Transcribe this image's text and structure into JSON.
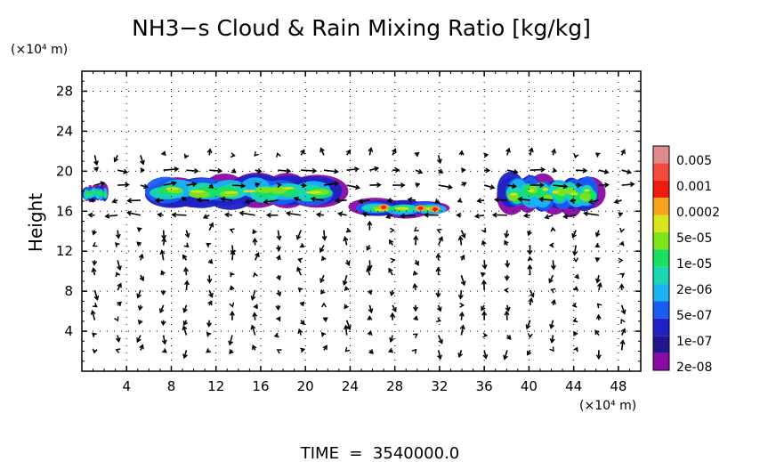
{
  "chart_data": {
    "type": "heatmap",
    "title": "NH3−s Cloud & Rain Mixing Ratio [kg/kg]",
    "xlabel": "",
    "ylabel": "Height",
    "x_unit": "(×10⁴ m)",
    "y_unit": "(×10⁴ m)",
    "xlim": [
      0,
      50
    ],
    "ylim": [
      0,
      30
    ],
    "x_ticks": [
      "4",
      "8",
      "12",
      "16",
      "20",
      "24",
      "28",
      "32",
      "36",
      "40",
      "44",
      "48"
    ],
    "y_ticks": [
      "4",
      "8",
      "12",
      "16",
      "20",
      "24",
      "28"
    ],
    "x_tick_values": [
      4,
      8,
      12,
      16,
      20,
      24,
      28,
      32,
      36,
      40,
      44,
      48
    ],
    "y_tick_values": [
      4,
      8,
      12,
      16,
      20,
      24,
      28
    ],
    "colorbar": {
      "labels": [
        "0.005",
        "0.001",
        "0.0002",
        "5e-05",
        "1e-05",
        "2e-06",
        "5e-07",
        "1e-07",
        "2e-08"
      ],
      "colors": [
        "#e08b8b",
        "#f44a3a",
        "#ee1c10",
        "#f6a31b",
        "#d8e61a",
        "#7fe31c",
        "#19e061",
        "#18d7b2",
        "#1ab3f2",
        "#1a5cf2",
        "#1c22c4",
        "#22148c",
        "#8a0aa5"
      ]
    },
    "cloud_regions": [
      {
        "x": [
          0,
          2.5
        ],
        "y": [
          17,
          18.5
        ],
        "level": "1e-05"
      },
      {
        "x": [
          5,
          24
        ],
        "y": [
          16.5,
          19.5
        ],
        "level": "5e-05"
      },
      {
        "x": [
          24.5,
          33
        ],
        "y": [
          15.5,
          17
        ],
        "level": "0.001"
      },
      {
        "x": [
          37,
          47
        ],
        "y": [
          16,
          19.5
        ],
        "level": "5e-05"
      }
    ],
    "wind_vectors": "arrow field over full domain; strongest horizontal flow near heights 15–21"
  },
  "footer": {
    "time_label": "TIME  =  3540000.0"
  },
  "colors": {
    "axis": "#000000",
    "grid_dots": "#000000",
    "arrow": "#000000"
  }
}
